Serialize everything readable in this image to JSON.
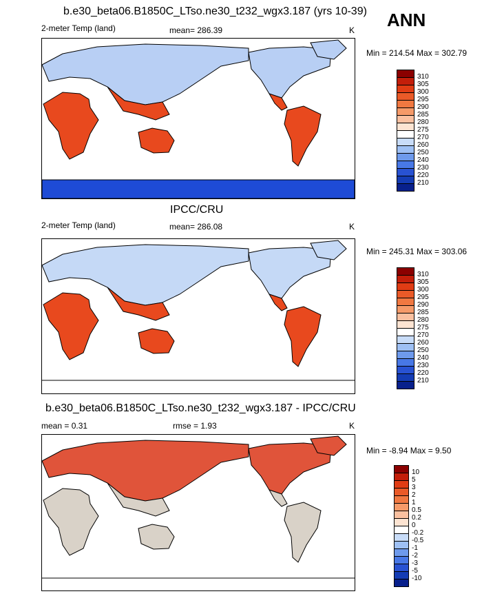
{
  "header": {
    "title": "b.e30_beta06.B1850C_LTso.ne30_t232_wgx3.187 (yrs 10-39)",
    "season": "ANN"
  },
  "panels": [
    {
      "title": "",
      "left_label": "2-meter Temp (land)",
      "center_label": "mean= 286.39",
      "units": "K",
      "minmax": "Min = 214.54 Max = 302.79",
      "scale": "absolute"
    },
    {
      "title": "IPCC/CRU",
      "left_label": "2-meter Temp (land)",
      "center_label": "mean= 286.08",
      "units": "K",
      "minmax": "Min = 245.31 Max = 303.06",
      "scale": "absolute"
    },
    {
      "title": "b.e30_beta06.B1850C_LTso.ne30_t232_wgx3.187 - IPCC/CRU",
      "left_label": "mean =   0.31",
      "center_label": "rmse =   1.93",
      "units": "K",
      "minmax": "Min =  -8.94 Max =   9.50",
      "scale": "difference"
    }
  ],
  "colorbars": {
    "absolute": {
      "labels": [
        "310",
        "305",
        "300",
        "295",
        "290",
        "285",
        "280",
        "275",
        "270",
        "260",
        "250",
        "240",
        "230",
        "220",
        "210"
      ],
      "colors": [
        "#8b0000",
        "#c31e0a",
        "#e03c14",
        "#ea5a28",
        "#f07841",
        "#f59a69",
        "#fac0a0",
        "#fde4d2",
        "#ffffff",
        "#c8dcf8",
        "#9ec0f4",
        "#6e9aec",
        "#4878e6",
        "#2852d2",
        "#143cb4",
        "#08208c"
      ]
    },
    "difference": {
      "labels": [
        "10",
        "5",
        "3",
        "2",
        "1",
        "0.5",
        "0.2",
        "0",
        "-0.2",
        "-0.5",
        "-1",
        "-2",
        "-3",
        "-5",
        "-10"
      ],
      "colors": [
        "#8b0000",
        "#c31e0a",
        "#e03c14",
        "#ea5a28",
        "#f07841",
        "#f59a69",
        "#fac0a0",
        "#fde4d2",
        "#ffffff",
        "#c8dcf8",
        "#9ec0f4",
        "#6e9aec",
        "#4878e6",
        "#2852d2",
        "#143cb4",
        "#08208c"
      ]
    }
  }
}
